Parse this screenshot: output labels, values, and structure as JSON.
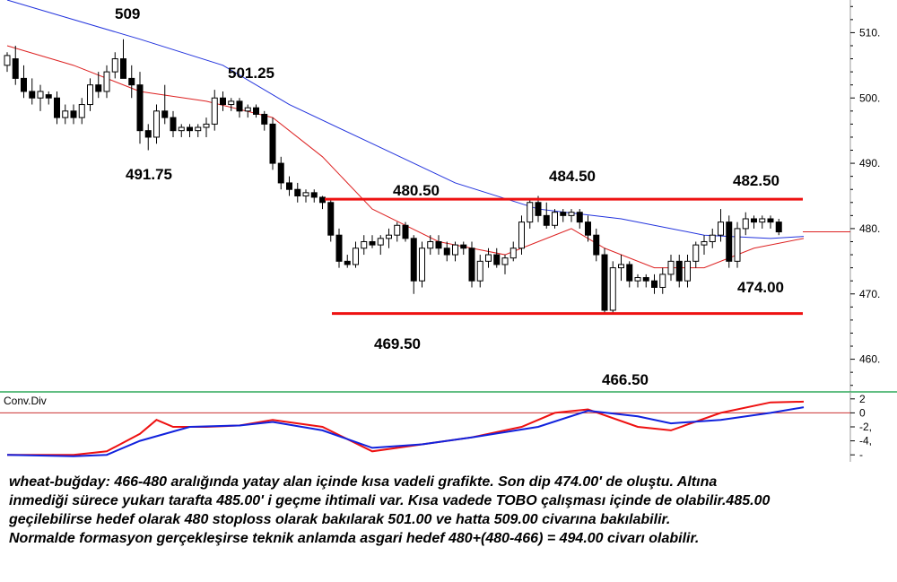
{
  "chart_data": {
    "type": "candlestick",
    "instrument": "wheat-buğday",
    "price_axis": {
      "ticks": [
        460,
        470,
        480,
        490,
        500,
        510
      ],
      "range": [
        455,
        515
      ]
    },
    "indicator": {
      "name": "Conv.Div",
      "ticks": [
        "2",
        "0",
        "-2,",
        "-4,",
        "-"
      ],
      "range": [
        -7,
        3
      ]
    },
    "levels": {
      "support": 467,
      "resistance": 484.5,
      "last_price": 479.5
    },
    "annotations": [
      {
        "text": "509",
        "price": 509
      },
      {
        "text": "501.25",
        "price": 501.25
      },
      {
        "text": "491.75",
        "price": 491.75
      },
      {
        "text": "480.50",
        "price": 480.5
      },
      {
        "text": "484.50",
        "price": 484.5
      },
      {
        "text": "482.50",
        "price": 482.5
      },
      {
        "text": "474.00",
        "price": 474
      },
      {
        "text": "469.50",
        "price": 469.5
      },
      {
        "text": "466.50",
        "price": 466.5
      }
    ],
    "candles": [
      [
        505,
        507,
        504,
        506.5
      ],
      [
        506,
        508,
        502,
        503
      ],
      [
        503,
        505,
        500,
        501
      ],
      [
        501,
        503,
        499,
        500
      ],
      [
        500,
        502,
        498,
        501
      ],
      [
        500.5,
        501,
        499,
        500
      ],
      [
        500,
        501,
        496,
        497
      ],
      [
        497,
        499,
        496,
        498
      ],
      [
        498,
        499,
        496,
        497
      ],
      [
        497,
        500,
        496,
        499
      ],
      [
        499,
        503,
        498,
        502
      ],
      [
        502,
        504,
        500,
        501
      ],
      [
        501,
        505,
        500,
        504
      ],
      [
        504,
        507,
        503,
        506
      ],
      [
        506,
        509,
        503,
        503
      ],
      [
        503,
        505,
        500,
        502
      ],
      [
        502,
        504,
        493,
        495
      ],
      [
        495,
        496,
        492,
        494
      ],
      [
        494,
        499,
        493,
        498
      ],
      [
        498,
        502,
        496,
        497
      ],
      [
        497,
        498,
        494,
        495
      ],
      [
        495,
        496,
        494,
        495.5
      ],
      [
        495.5,
        496,
        494,
        495
      ],
      [
        495,
        496,
        494,
        495.5
      ],
      [
        495.5,
        497,
        494,
        496
      ],
      [
        496,
        501.25,
        495,
        500
      ],
      [
        500,
        501,
        498,
        499
      ],
      [
        499,
        500,
        498,
        499.5
      ],
      [
        499.5,
        500,
        497,
        498
      ],
      [
        498,
        499,
        497,
        498.5
      ],
      [
        498.5,
        499,
        497,
        497.5
      ],
      [
        497.5,
        498,
        495,
        496
      ],
      [
        496,
        497,
        489,
        490
      ],
      [
        490,
        491,
        486,
        487
      ],
      [
        487,
        488,
        485,
        486
      ],
      [
        486,
        487,
        484,
        485
      ],
      [
        485,
        486,
        484,
        485.5
      ],
      [
        485.5,
        486,
        484,
        484.8
      ],
      [
        484.8,
        485,
        483,
        484
      ],
      [
        484,
        484.5,
        478,
        479
      ],
      [
        479,
        480,
        474,
        475
      ],
      [
        475,
        476,
        474,
        474.5
      ],
      [
        474.5,
        478,
        474,
        477
      ],
      [
        477,
        479,
        476,
        478
      ],
      [
        478,
        479,
        477,
        477.5
      ],
      [
        477.5,
        479,
        476,
        478.5
      ],
      [
        478.5,
        480,
        477,
        479
      ],
      [
        479,
        481,
        478,
        480.5
      ],
      [
        480.5,
        481,
        478,
        478.5
      ],
      [
        478.5,
        479,
        470,
        472
      ],
      [
        472,
        478,
        471,
        477
      ],
      [
        477,
        479,
        476,
        478
      ],
      [
        478,
        479,
        476,
        477
      ],
      [
        477,
        478,
        475,
        476
      ],
      [
        476,
        478,
        475,
        477.5
      ],
      [
        477.5,
        478,
        476,
        477
      ],
      [
        477,
        478,
        471,
        472
      ],
      [
        472,
        476,
        471,
        475
      ],
      [
        475,
        477,
        474,
        476
      ],
      [
        476,
        477,
        474,
        474.5
      ],
      [
        474.5,
        476,
        473,
        475.5
      ],
      [
        475.5,
        478,
        475,
        477
      ],
      [
        477,
        482,
        476,
        481
      ],
      [
        481,
        484.5,
        480,
        484
      ],
      [
        484,
        485,
        481,
        482
      ],
      [
        482,
        484,
        480,
        480.5
      ],
      [
        480.5,
        483,
        480,
        482.5
      ],
      [
        482.5,
        483,
        481,
        482
      ],
      [
        482,
        483,
        481,
        482.5
      ],
      [
        482.5,
        483,
        480,
        481
      ],
      [
        481,
        482,
        478,
        479
      ],
      [
        479,
        480,
        475,
        476
      ],
      [
        476,
        477,
        467,
        467.5
      ],
      [
        467.5,
        475,
        467,
        474
      ],
      [
        474,
        476,
        472,
        474.5
      ],
      [
        474.5,
        475,
        471,
        472
      ],
      [
        472,
        473,
        471,
        472.5
      ],
      [
        472.5,
        473,
        471,
        472
      ],
      [
        472,
        473,
        470,
        471
      ],
      [
        471,
        474,
        470,
        473
      ],
      [
        473,
        476,
        472,
        475
      ],
      [
        475,
        476,
        471,
        472
      ],
      [
        472,
        476,
        471,
        475
      ],
      [
        475,
        478,
        474,
        477.5
      ],
      [
        477.5,
        479,
        476,
        478
      ],
      [
        478,
        480,
        477,
        479
      ],
      [
        479,
        483,
        478,
        481
      ],
      [
        481,
        482,
        474,
        475
      ],
      [
        475,
        481,
        474,
        480
      ],
      [
        480,
        482.5,
        479,
        481.5
      ],
      [
        481.5,
        482,
        480,
        481
      ],
      [
        481,
        482,
        480,
        481.5
      ],
      [
        481.5,
        482,
        480,
        481
      ],
      [
        481,
        481.5,
        479,
        479.5
      ]
    ],
    "ma_blue": [
      [
        0,
        515
      ],
      [
        8,
        512
      ],
      [
        16,
        509
      ],
      [
        26,
        505
      ],
      [
        34,
        499
      ],
      [
        44,
        493
      ],
      [
        54,
        487
      ],
      [
        64,
        483
      ],
      [
        74,
        481.5
      ],
      [
        84,
        479
      ],
      [
        92,
        478.5
      ],
      [
        96,
        478.8
      ]
    ],
    "ma_red": [
      [
        0,
        508
      ],
      [
        8,
        505
      ],
      [
        16,
        501
      ],
      [
        24,
        499.5
      ],
      [
        32,
        497
      ],
      [
        38,
        491
      ],
      [
        44,
        483
      ],
      [
        52,
        478
      ],
      [
        60,
        476
      ],
      [
        64,
        478
      ],
      [
        68,
        480
      ],
      [
        72,
        477
      ],
      [
        78,
        474
      ],
      [
        84,
        474
      ],
      [
        90,
        477
      ],
      [
        96,
        478.5
      ]
    ],
    "conv_blue": [
      [
        0,
        -6
      ],
      [
        8,
        -6.2
      ],
      [
        12,
        -6
      ],
      [
        16,
        -4
      ],
      [
        22,
        -2
      ],
      [
        28,
        -1.8
      ],
      [
        32,
        -1.3
      ],
      [
        38,
        -2.5
      ],
      [
        44,
        -5
      ],
      [
        50,
        -4.5
      ],
      [
        56,
        -3.5
      ],
      [
        64,
        -2
      ],
      [
        70,
        0.3
      ],
      [
        76,
        -0.5
      ],
      [
        80,
        -1.5
      ],
      [
        86,
        -1
      ],
      [
        92,
        0
      ],
      [
        96,
        0.8
      ]
    ],
    "conv_red": [
      [
        0,
        -6
      ],
      [
        8,
        -6
      ],
      [
        12,
        -5.5
      ],
      [
        16,
        -3
      ],
      [
        18,
        -1
      ],
      [
        20,
        -2
      ],
      [
        24,
        -2
      ],
      [
        28,
        -1.8
      ],
      [
        32,
        -1
      ],
      [
        38,
        -2
      ],
      [
        44,
        -5.5
      ],
      [
        50,
        -4.5
      ],
      [
        56,
        -3.5
      ],
      [
        62,
        -2
      ],
      [
        66,
        0
      ],
      [
        70,
        0.5
      ],
      [
        76,
        -2
      ],
      [
        80,
        -2.5
      ],
      [
        86,
        0
      ],
      [
        92,
        1.5
      ],
      [
        96,
        1.6
      ]
    ]
  },
  "commentary": [
    "wheat-buğday: 466-480 aralığında yatay alan içinde kısa vadeli grafikte. Son dip 474.00' de oluştu. Altına",
    "inmediği sürece yukarı tarafta 485.00' i geçme ihtimali var. Kısa vadede TOBO çalışması içinde de olabilir.485.00",
    "geçilebilirse hedef olarak 480 stoploss olarak bakılarak 501.00 ve hatta 509.00 civarına bakılabilir.",
    "Normalde formasyon gerçekleşirse teknik anlamda asgari hedef 480+(480-466) = 494.00 civarı olabilir."
  ]
}
